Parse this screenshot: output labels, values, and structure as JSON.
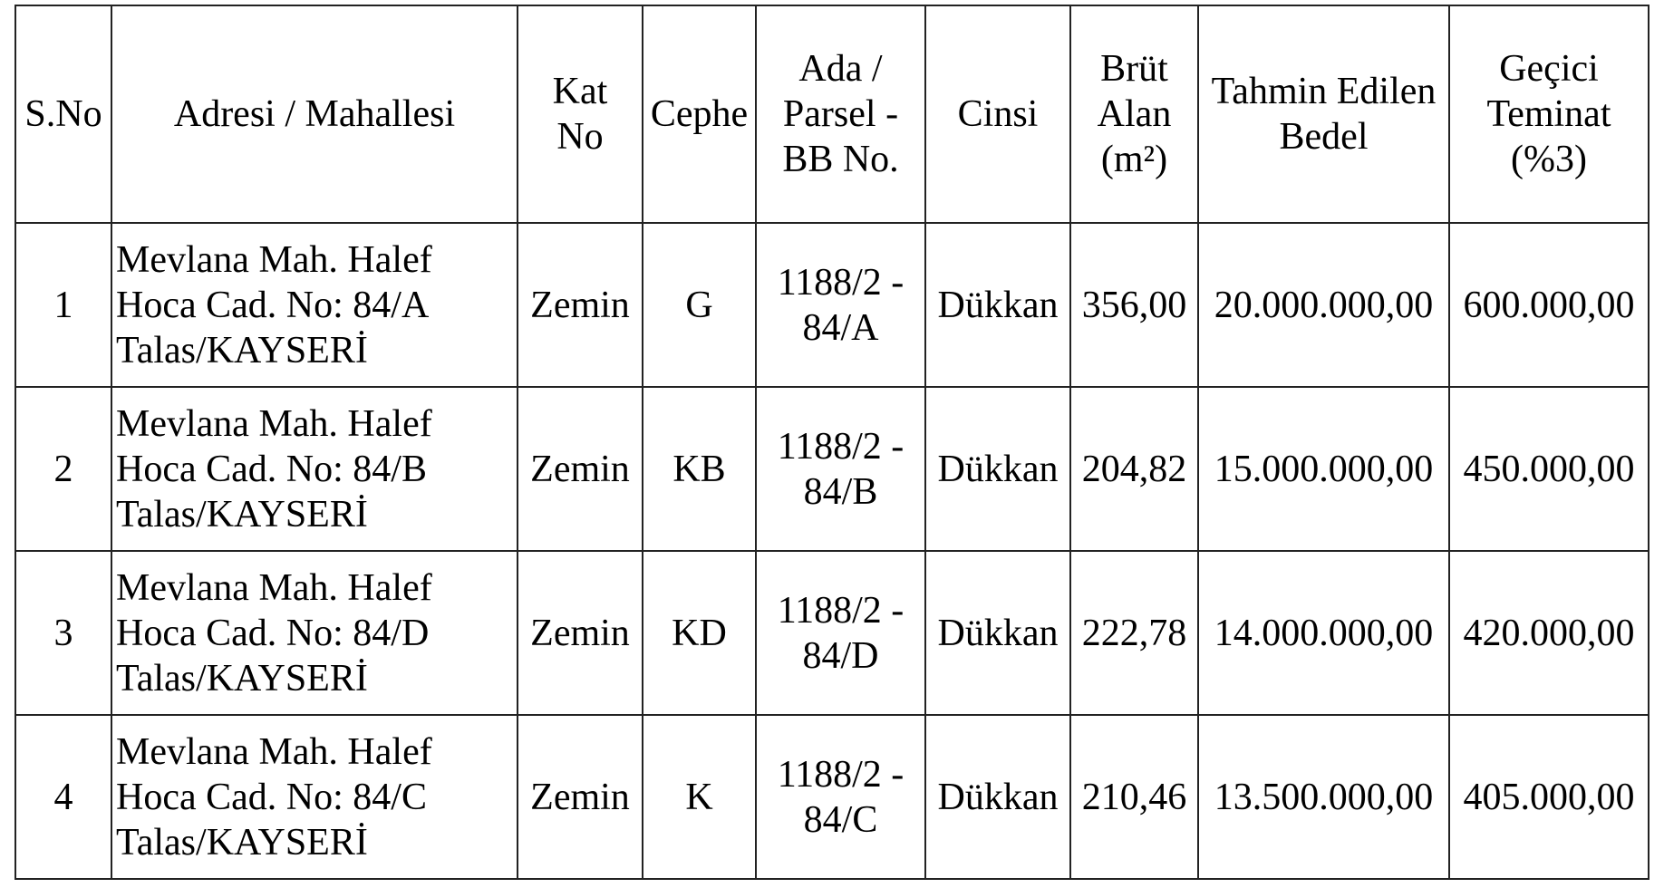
{
  "table": {
    "headers": [
      "S.No",
      "Adresi / Mahallesi",
      "Kat No",
      "Cephe",
      "Ada / Parsel - BB No.",
      "Cinsi",
      "Brüt Alan (m²)",
      "Tahmin Edilen Bedel",
      "Geçici Teminat (%3)"
    ],
    "rows": [
      {
        "sno": "1",
        "address": "Mevlana Mah. Halef Hoca Cad. No: 84/A Talas/KAYSERİ",
        "floor": "Zemin",
        "facade": "G",
        "parcel": "1188/2 - 84/A",
        "type": "Dükkan",
        "area": "356,00",
        "estimated_price": "20.000.000,00",
        "deposit": "600.000,00"
      },
      {
        "sno": "2",
        "address": "Mevlana Mah. Halef Hoca Cad. No: 84/B Talas/KAYSERİ",
        "floor": "Zemin",
        "facade": "KB",
        "parcel": "1188/2 - 84/B",
        "type": "Dükkan",
        "area": "204,82",
        "estimated_price": "15.000.000,00",
        "deposit": "450.000,00"
      },
      {
        "sno": "3",
        "address": "Mevlana Mah. Halef Hoca Cad. No: 84/D Talas/KAYSERİ",
        "floor": "Zemin",
        "facade": "KD",
        "parcel": "1188/2 - 84/D",
        "type": "Dükkan",
        "area": "222,78",
        "estimated_price": "14.000.000,00",
        "deposit": "420.000,00"
      },
      {
        "sno": "4",
        "address": "Mevlana Mah. Halef Hoca Cad. No: 84/C Talas/KAYSERİ",
        "floor": "Zemin",
        "facade": "K",
        "parcel": "1188/2 - 84/C",
        "type": "Dükkan",
        "area": "210,46",
        "estimated_price": "13.500.000,00",
        "deposit": "405.000,00"
      }
    ]
  }
}
